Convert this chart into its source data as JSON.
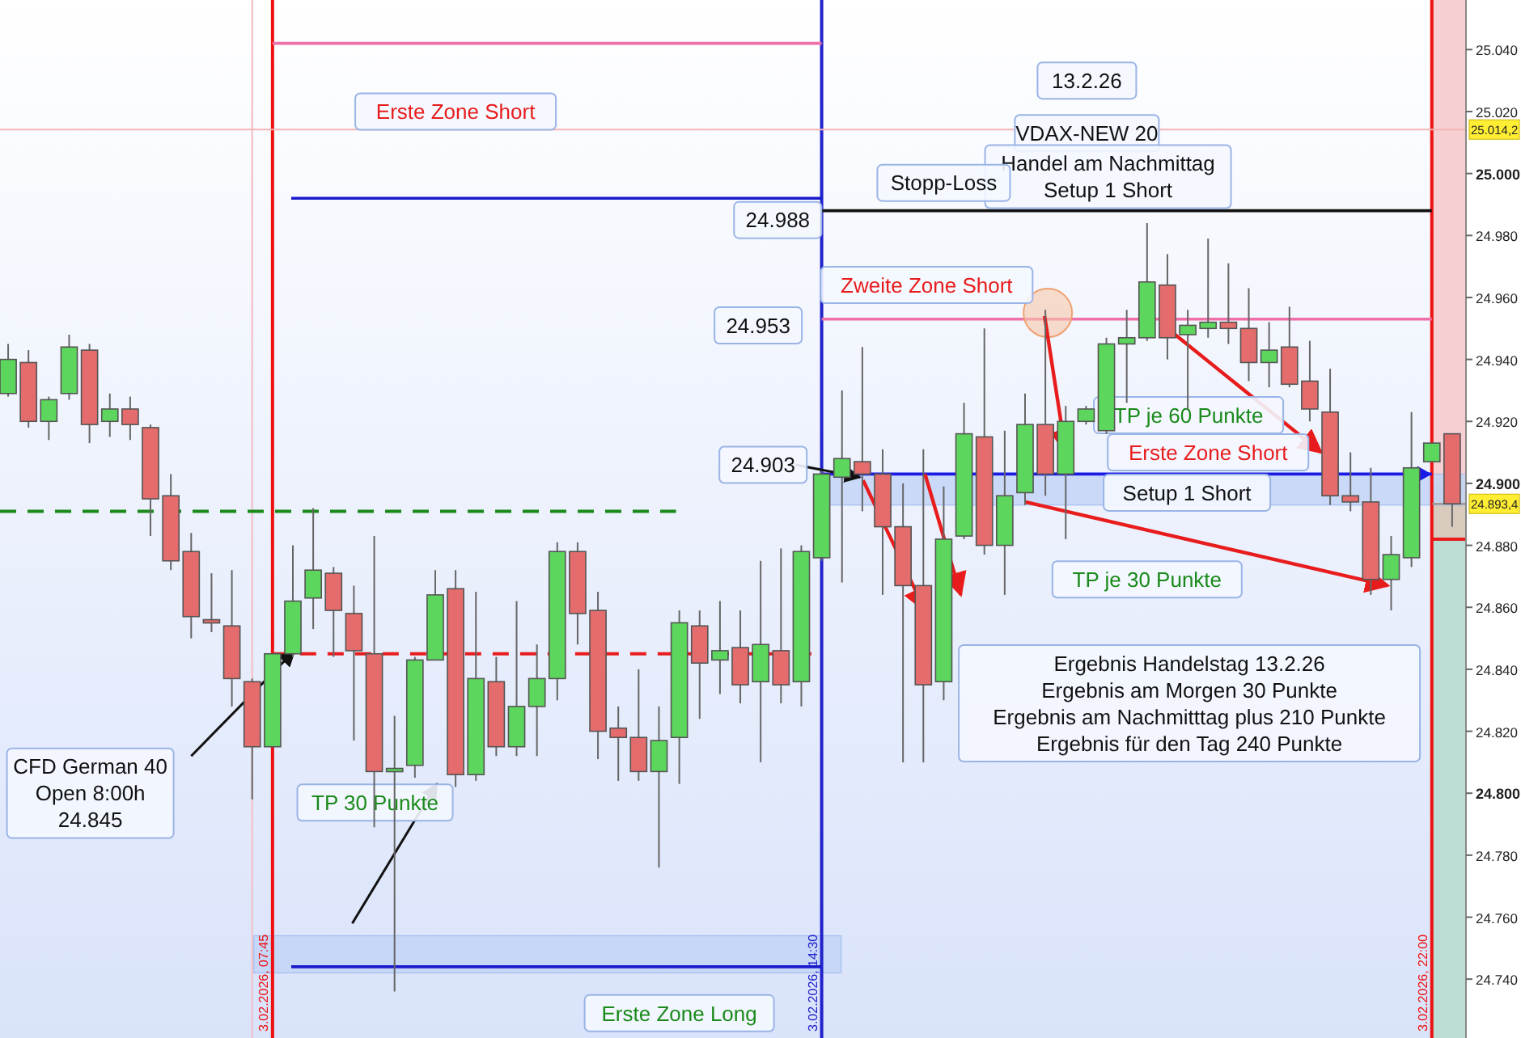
{
  "chart_data": {
    "type": "candlestick",
    "categories": [
      null,
      null,
      null,
      null,
      null,
      null,
      null,
      null,
      null,
      null,
      null,
      null,
      null,
      null,
      null,
      null,
      null,
      null,
      null,
      null,
      null,
      null,
      null,
      null,
      null,
      null,
      null,
      null,
      null,
      null,
      null,
      null,
      null,
      null,
      null,
      null,
      null,
      null,
      null,
      null,
      null,
      null,
      null,
      null,
      null,
      null,
      null,
      null,
      null,
      null,
      null,
      null,
      null,
      null,
      null,
      null,
      null,
      null,
      null,
      null,
      null,
      null,
      null,
      null,
      null,
      null,
      null,
      null,
      null,
      null,
      null,
      null
    ],
    "ohlc": [
      [
        24929,
        24945,
        24928,
        24940
      ],
      [
        24939,
        24943,
        24918,
        24920
      ],
      [
        24920,
        24928,
        24914,
        24927
      ],
      [
        24929,
        24948,
        24927,
        24944
      ],
      [
        24943,
        24945,
        24913,
        24919
      ],
      [
        24920,
        24929,
        24915,
        24924
      ],
      [
        24924,
        24928,
        24914,
        24919
      ],
      [
        24918,
        24919,
        24883,
        24895
      ],
      [
        24896,
        24903,
        24872,
        24875
      ],
      [
        24878,
        24884,
        24850,
        24857
      ],
      [
        24856,
        24871,
        24852,
        24855
      ],
      [
        24854,
        24872,
        24828,
        24837
      ],
      [
        24836,
        24837,
        24798,
        24815
      ],
      [
        24815,
        24845,
        24815,
        24845
      ],
      [
        24845,
        24880,
        24844,
        24862
      ],
      [
        24863,
        24892,
        24853,
        24872
      ],
      [
        24871,
        24873,
        24844,
        24859
      ],
      [
        24858,
        24867,
        24817,
        24846
      ],
      [
        24845,
        24883,
        24789,
        24807
      ],
      [
        24807,
        24825,
        24736,
        24808
      ],
      [
        24809,
        24844,
        24805,
        24843
      ],
      [
        24843,
        24872,
        24843,
        24864
      ],
      [
        24866,
        24872,
        24802,
        24806
      ],
      [
        24806,
        24865,
        24804,
        24837
      ],
      [
        24836,
        24844,
        24812,
        24815
      ],
      [
        24815,
        24862,
        24812,
        24828
      ],
      [
        24828,
        24848,
        24812,
        24837
      ],
      [
        24837,
        24881,
        24830,
        24878
      ],
      [
        24878,
        24881,
        24848,
        24858
      ],
      [
        24859,
        24865,
        24811,
        24820
      ],
      [
        24821,
        24828,
        24804,
        24818
      ],
      [
        24818,
        24840,
        24804,
        24807
      ],
      [
        24807,
        24828,
        24776,
        24817
      ],
      [
        24818,
        24859,
        24803,
        24855
      ],
      [
        24854,
        24859,
        24824,
        24842
      ],
      [
        24843,
        24862,
        24832,
        24846
      ],
      [
        24847,
        24859,
        24829,
        24835
      ],
      [
        24836,
        24875,
        24810,
        24848
      ],
      [
        24846,
        24879,
        24829,
        24835
      ],
      [
        24836,
        24880,
        24828,
        24878
      ],
      [
        24876,
        24904,
        24875,
        24903
      ],
      [
        24902,
        24930,
        24868,
        24908
      ],
      [
        24907,
        24944,
        24891,
        24903
      ],
      [
        24903,
        24911,
        24864,
        24886
      ],
      [
        24886,
        24900,
        24810,
        24867
      ],
      [
        24867,
        24911,
        24810,
        24835
      ],
      [
        24836,
        24899,
        24830,
        24882
      ],
      [
        24883,
        24926,
        24882,
        24916
      ],
      [
        24915,
        24950,
        24877,
        24880
      ],
      [
        24880,
        24917,
        24864,
        24896
      ],
      [
        24897,
        24929,
        24893,
        24919
      ],
      [
        24919,
        24956,
        24896,
        24903
      ],
      [
        24903,
        24925,
        24882,
        24920
      ],
      [
        24920,
        24925,
        24919,
        24924
      ],
      [
        24917,
        24947,
        24916,
        24945
      ],
      [
        24945,
        24956,
        24926,
        24947
      ],
      [
        24947,
        24984,
        24946,
        24965
      ],
      [
        24964,
        24974,
        24940,
        24947
      ],
      [
        24948,
        24956,
        24924,
        24951
      ],
      [
        24950,
        24979,
        24947,
        24952
      ],
      [
        24952,
        24971,
        24945,
        24950
      ],
      [
        24950,
        24963,
        24933,
        24939
      ],
      [
        24939,
        24952,
        24931,
        24943
      ],
      [
        24944,
        24957,
        24931,
        24932
      ],
      [
        24933,
        24946,
        24920,
        24924
      ],
      [
        24923,
        24937,
        24893,
        24896
      ],
      [
        24896,
        24910,
        24891,
        24894
      ],
      [
        24894,
        24905,
        24864,
        24869
      ],
      [
        24869,
        24883,
        24859,
        24877
      ],
      [
        24876,
        24923,
        24873,
        24905
      ],
      [
        24907,
        24913,
        24907,
        24913
      ],
      [
        24916,
        24916,
        24886,
        24893.4
      ]
    ],
    "colors": [
      "#5cd65c",
      "#e46c6c",
      "#5cd65c",
      "#5cd65c",
      "#e46c6c",
      "#5cd65c",
      "#e46c6c",
      "#e46c6c",
      "#e46c6c",
      "#e46c6c",
      "#e46c6c",
      "#e46c6c",
      "#e46c6c",
      "#5cd65c",
      "#5cd65c",
      "#5cd65c",
      "#e46c6c",
      "#e46c6c",
      "#e46c6c",
      "#5cd65c",
      "#5cd65c",
      "#5cd65c",
      "#e46c6c",
      "#5cd65c",
      "#e46c6c",
      "#5cd65c",
      "#5cd65c",
      "#5cd65c",
      "#e46c6c",
      "#e46c6c",
      "#e46c6c",
      "#e46c6c",
      "#5cd65c",
      "#5cd65c",
      "#e46c6c",
      "#5cd65c",
      "#e46c6c",
      "#5cd65c",
      "#e46c6c",
      "#5cd65c",
      "#5cd65c",
      "#5cd65c",
      "#e46c6c",
      "#e46c6c",
      "#e46c6c",
      "#e46c6c",
      "#5cd65c",
      "#5cd65c",
      "#e46c6c",
      "#5cd65c",
      "#5cd65c",
      "#e46c6c",
      "#5cd65c",
      "#5cd65c",
      "#5cd65c",
      "#5cd65c",
      "#5cd65c",
      "#e46c6c",
      "#5cd65c",
      "#5cd65c",
      "#e46c6c",
      "#e46c6c",
      "#5cd65c",
      "#e46c6c",
      "#e46c6c",
      "#e46c6c",
      "#e46c6c",
      "#e46c6c",
      "#5cd65c",
      "#5cd65c",
      "#5cd65c",
      "#e46c6c"
    ],
    "ylim": [
      24721,
      25056
    ],
    "yticks": [
      {
        "value": 24740,
        "label": "24.740"
      },
      {
        "value": 24760,
        "label": "24.760"
      },
      {
        "value": 24780,
        "label": "24.780"
      },
      {
        "value": 24800,
        "label": "24.800"
      },
      {
        "value": 24820,
        "label": "24.820"
      },
      {
        "value": 24840,
        "label": "24.840"
      },
      {
        "value": 24860,
        "label": "24.860"
      },
      {
        "value": 24880,
        "label": "24.880"
      },
      {
        "value": 24900,
        "label": "24.900"
      },
      {
        "value": 24920,
        "label": "24.920"
      },
      {
        "value": 24940,
        "label": "24.940"
      },
      {
        "value": 24960,
        "label": "24.960"
      },
      {
        "value": 24980,
        "label": "24.980"
      },
      {
        "value": 25000,
        "label": "25.000"
      },
      {
        "value": 25020,
        "label": "25.020"
      },
      {
        "value": 25040,
        "label": "25.040"
      }
    ],
    "tick_labels": "y",
    "bands": [
      {
        "axis": "y",
        "from": 24742,
        "to": 24754,
        "color": "#c3d5f7"
      },
      {
        "axis": "y",
        "from": 24893,
        "to": 24903,
        "color": "#c3d5f7"
      }
    ],
    "ref_lines": [
      {
        "axis": "y",
        "value": 25042,
        "color": "#f06fa8"
      },
      {
        "axis": "y",
        "value": 25014.2,
        "label": "25.014,2",
        "color": "#f7b4b4"
      },
      {
        "axis": "y",
        "value": 24992,
        "color": "#1a1acc"
      },
      {
        "axis": "y",
        "value": 24988,
        "color": "#111111"
      },
      {
        "axis": "y",
        "value": 24953,
        "color": "#f06fa8"
      },
      {
        "axis": "y",
        "value": 24903,
        "color": "#1a1ae6"
      },
      {
        "axis": "y",
        "value": 24891,
        "color": "#1a8a1a",
        "line_style": "dashed"
      },
      {
        "axis": "y",
        "value": 24845,
        "color": "#e81c1c",
        "line_style": "dashed"
      },
      {
        "axis": "y",
        "value": 24744,
        "color": "#1a1acc"
      },
      {
        "axis": "y",
        "value": 24893.4,
        "label": "24.893,4",
        "color": "#9a8f80"
      }
    ],
    "annotations": [
      "Erste Zone Short",
      "13.2.26",
      "VDAX-NEW 20",
      "Handel am Nachmittag\nSetup 1 Short",
      "Stopp-Loss",
      "24.988",
      "Zweite Zone Short",
      "24.953",
      "24.903",
      "TP je 60 Punkte",
      "Erste Zone Short",
      "Setup 1 Short",
      "TP je 30 Punkte",
      "Ergebnis Handelstag 13.2.26\nErgebnis am Morgen  30 Punkte\nErgebnis am Nachmitttag plus 210 Punkte\nErgebnis für den Tag 240 Punkte",
      "CFD German 40\nOpen 8:00h\n24.845",
      "TP 30 Punkte",
      "Erste Zone Long",
      "3.02.2026, 07:45",
      "3.02.2026, 14:30",
      "3.02.2026, 22:00"
    ]
  }
}
